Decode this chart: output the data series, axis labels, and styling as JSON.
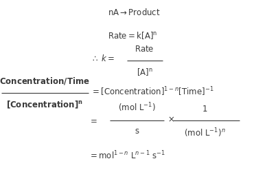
{
  "bg_color": "#ffffff",
  "text_color": "#3a3a3a",
  "figsize": [
    3.73,
    2.47
  ],
  "dpi": 100,
  "fs": 8.5,
  "fs_big": 8.5
}
